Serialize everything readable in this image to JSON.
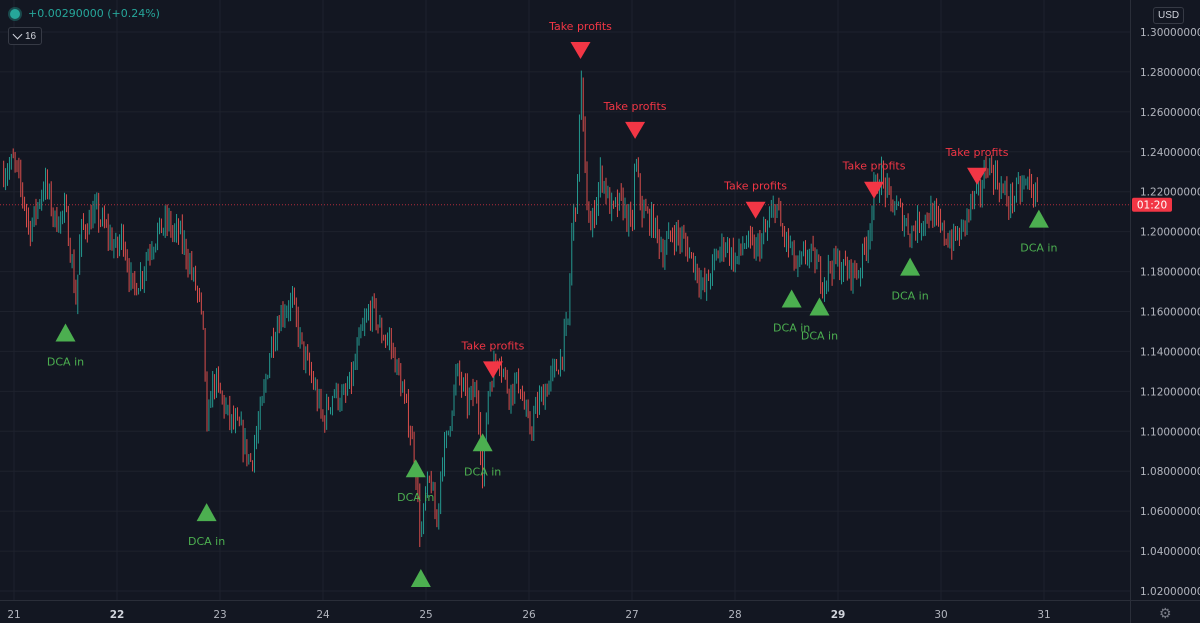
{
  "header": {
    "change_text": "+0.00290000 (+0.24%)",
    "interval_label": "16",
    "currency_button": "USD",
    "status_color": "#26a69a"
  },
  "chart_data": {
    "type": "candlestick",
    "x_ticks": [
      {
        "label": "21",
        "day": 21,
        "bold": false
      },
      {
        "label": "22",
        "day": 22,
        "bold": true
      },
      {
        "label": "23",
        "day": 23,
        "bold": false
      },
      {
        "label": "24",
        "day": 24,
        "bold": false
      },
      {
        "label": "25",
        "day": 25,
        "bold": false
      },
      {
        "label": "26",
        "day": 26,
        "bold": false
      },
      {
        "label": "27",
        "day": 27,
        "bold": false
      },
      {
        "label": "28",
        "day": 28,
        "bold": false
      },
      {
        "label": "29",
        "day": 29,
        "bold": true
      },
      {
        "label": "30",
        "day": 30,
        "bold": false
      },
      {
        "label": "31",
        "day": 31,
        "bold": false
      }
    ],
    "y_ticks": [
      "1.30000000",
      "1.28000000",
      "1.26000000",
      "1.24000000",
      "1.22000000",
      "1.20000000",
      "1.18000000",
      "1.16000000",
      "1.14000000",
      "1.12000000",
      "1.10000000",
      "1.08000000",
      "1.06000000",
      "1.04000000",
      "1.02000000"
    ],
    "y_tick_values": [
      1.3,
      1.28,
      1.26,
      1.24,
      1.22,
      1.2,
      1.18,
      1.16,
      1.14,
      1.12,
      1.1,
      1.08,
      1.06,
      1.04,
      1.02
    ],
    "ylim": [
      1.0115,
      1.3135
    ],
    "xlim": [
      20.9,
      31.6
    ],
    "price_line": {
      "value": 1.2135,
      "label": "01:20",
      "color": "#f23645"
    },
    "price_path": [
      [
        20.9,
        1.23
      ],
      [
        21.0,
        1.235
      ],
      [
        21.1,
        1.215
      ],
      [
        21.15,
        1.2
      ],
      [
        21.3,
        1.225
      ],
      [
        21.4,
        1.205
      ],
      [
        21.5,
        1.21
      ],
      [
        21.55,
        1.19
      ],
      [
        21.6,
        1.165
      ],
      [
        21.65,
        1.2
      ],
      [
        21.8,
        1.21
      ],
      [
        21.9,
        1.2
      ],
      [
        22.0,
        1.19
      ],
      [
        22.05,
        1.2
      ],
      [
        22.15,
        1.17
      ],
      [
        22.25,
        1.18
      ],
      [
        22.3,
        1.19
      ],
      [
        22.4,
        1.2
      ],
      [
        22.5,
        1.205
      ],
      [
        22.55,
        1.198
      ],
      [
        22.6,
        1.2
      ],
      [
        22.7,
        1.185
      ],
      [
        22.75,
        1.175
      ],
      [
        22.8,
        1.165
      ],
      [
        22.85,
        1.14
      ],
      [
        22.88,
        1.085
      ],
      [
        22.9,
        1.12
      ],
      [
        22.95,
        1.125
      ],
      [
        23.1,
        1.105
      ],
      [
        23.2,
        1.1
      ],
      [
        23.25,
        1.09
      ],
      [
        23.3,
        1.085
      ],
      [
        23.4,
        1.11
      ],
      [
        23.5,
        1.145
      ],
      [
        23.6,
        1.16
      ],
      [
        23.7,
        1.165
      ],
      [
        23.8,
        1.14
      ],
      [
        23.9,
        1.125
      ],
      [
        24.0,
        1.105
      ],
      [
        24.1,
        1.12
      ],
      [
        24.2,
        1.115
      ],
      [
        24.3,
        1.13
      ],
      [
        24.35,
        1.145
      ],
      [
        24.45,
        1.16
      ],
      [
        24.5,
        1.16
      ],
      [
        24.55,
        1.15
      ],
      [
        24.65,
        1.145
      ],
      [
        24.75,
        1.125
      ],
      [
        24.85,
        1.1
      ],
      [
        24.9,
        1.08
      ],
      [
        24.95,
        1.045
      ],
      [
        25.0,
        1.07
      ],
      [
        25.05,
        1.075
      ],
      [
        25.1,
        1.05
      ],
      [
        25.15,
        1.085
      ],
      [
        25.2,
        1.095
      ],
      [
        25.3,
        1.13
      ],
      [
        25.4,
        1.115
      ],
      [
        25.5,
        1.12
      ],
      [
        25.55,
        1.075
      ],
      [
        25.6,
        1.12
      ],
      [
        25.7,
        1.14
      ],
      [
        25.8,
        1.12
      ],
      [
        25.9,
        1.125
      ],
      [
        26.0,
        1.1
      ],
      [
        26.1,
        1.115
      ],
      [
        26.2,
        1.125
      ],
      [
        26.3,
        1.135
      ],
      [
        26.38,
        1.155
      ],
      [
        26.42,
        1.205
      ],
      [
        26.47,
        1.22
      ],
      [
        26.5,
        1.285
      ],
      [
        26.55,
        1.22
      ],
      [
        26.6,
        1.2
      ],
      [
        26.7,
        1.23
      ],
      [
        26.8,
        1.21
      ],
      [
        26.9,
        1.215
      ],
      [
        27.0,
        1.2
      ],
      [
        27.03,
        1.235
      ],
      [
        27.1,
        1.21
      ],
      [
        27.2,
        1.205
      ],
      [
        27.3,
        1.19
      ],
      [
        27.4,
        1.2
      ],
      [
        27.5,
        1.195
      ],
      [
        27.6,
        1.185
      ],
      [
        27.7,
        1.17
      ],
      [
        27.8,
        1.185
      ],
      [
        27.9,
        1.195
      ],
      [
        28.0,
        1.185
      ],
      [
        28.1,
        1.195
      ],
      [
        28.2,
        1.19
      ],
      [
        28.3,
        1.2
      ],
      [
        28.4,
        1.215
      ],
      [
        28.45,
        1.2
      ],
      [
        28.55,
        1.19
      ],
      [
        28.6,
        1.18
      ],
      [
        28.7,
        1.19
      ],
      [
        28.8,
        1.183
      ],
      [
        28.85,
        1.175
      ],
      [
        28.95,
        1.185
      ],
      [
        29.1,
        1.18
      ],
      [
        29.2,
        1.18
      ],
      [
        29.3,
        1.2
      ],
      [
        29.35,
        1.22
      ],
      [
        29.42,
        1.228
      ],
      [
        29.5,
        1.215
      ],
      [
        29.6,
        1.21
      ],
      [
        29.7,
        1.2
      ],
      [
        29.8,
        1.205
      ],
      [
        29.9,
        1.21
      ],
      [
        30.0,
        1.2
      ],
      [
        30.1,
        1.195
      ],
      [
        30.2,
        1.2
      ],
      [
        30.3,
        1.215
      ],
      [
        30.38,
        1.22
      ],
      [
        30.45,
        1.235
      ],
      [
        30.55,
        1.225
      ],
      [
        30.65,
        1.215
      ],
      [
        30.75,
        1.22
      ],
      [
        30.85,
        1.225
      ],
      [
        30.9,
        1.22
      ],
      [
        30.95,
        1.21
      ]
    ],
    "take_profit_signals": [
      {
        "label": "Take profits",
        "day": 25.65,
        "price": 1.135
      },
      {
        "label": "Take profits",
        "day": 26.5,
        "price": 1.295
      },
      {
        "label": "Take profits",
        "day": 27.03,
        "price": 1.255
      },
      {
        "label": "Take profits",
        "day": 28.2,
        "price": 1.215
      },
      {
        "label": "Take profits",
        "day": 29.35,
        "price": 1.225
      },
      {
        "label": "Take profits",
        "day": 30.35,
        "price": 1.232
      }
    ],
    "dca_signals": [
      {
        "label": "DCA in",
        "day": 21.5,
        "price": 1.145,
        "show_label": true
      },
      {
        "label": "DCA in",
        "day": 22.87,
        "price": 1.055,
        "show_label": true
      },
      {
        "label": "DCA in",
        "day": 24.9,
        "price": 1.077,
        "show_label": true
      },
      {
        "label": "DCA in",
        "day": 24.95,
        "price": 1.022,
        "show_label": false
      },
      {
        "label": "DCA in",
        "day": 25.55,
        "price": 1.09,
        "show_label": true
      },
      {
        "label": "DCA in",
        "day": 28.55,
        "price": 1.162,
        "show_label": true
      },
      {
        "label": "DCA in",
        "day": 28.82,
        "price": 1.158,
        "show_label": true
      },
      {
        "label": "DCA in",
        "day": 29.7,
        "price": 1.178,
        "show_label": true
      },
      {
        "label": "DCA in",
        "day": 30.95,
        "price": 1.202,
        "show_label": true
      }
    ],
    "up_color": "#26a69a",
    "down_color": "#ef5350",
    "tp_color": "#f23645",
    "dca_color": "#4caf50",
    "grid": true
  }
}
